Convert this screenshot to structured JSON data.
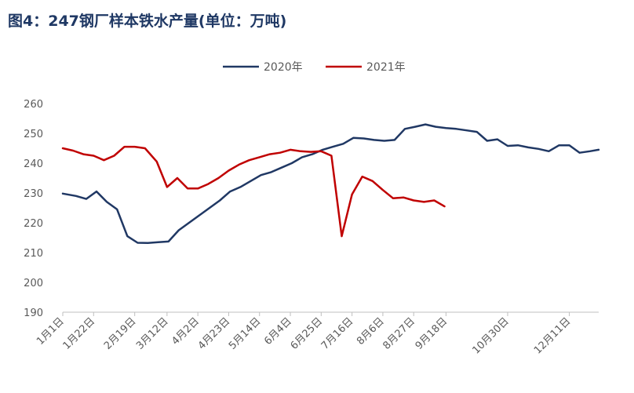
{
  "title": "图4：247钢厂样本铁水产量(单位：万吨)",
  "chart_data": {
    "type": "line",
    "title": "图4：247钢厂样本铁水产量(单位：万吨)",
    "xlabel": "",
    "ylabel": "",
    "ylim": [
      190,
      260
    ],
    "yticks": [
      190,
      200,
      210,
      220,
      230,
      240,
      250,
      260
    ],
    "categories": [
      "1月1日",
      "1月22日",
      "2月19日",
      "3月12日",
      "4月2日",
      "4月23日",
      "5月14日",
      "6月4日",
      "6月25日",
      "7月16日",
      "8月6日",
      "8月27日",
      "9月18日",
      "10月30日",
      "12月11日"
    ],
    "grid": false,
    "legend_position": "top",
    "series": [
      {
        "name": "2020年",
        "color": "#203864",
        "points": [
          [
            "01-01",
            229.8
          ],
          [
            "01-10",
            229
          ],
          [
            "01-17",
            228
          ],
          [
            "01-24",
            230.5
          ],
          [
            "01-31",
            227
          ],
          [
            "02-07",
            224.5
          ],
          [
            "02-14",
            215.5
          ],
          [
            "02-21",
            213.3
          ],
          [
            "02-28",
            213.2
          ],
          [
            "03-06",
            213.5
          ],
          [
            "03-13",
            213.7
          ],
          [
            "03-20",
            217.5
          ],
          [
            "03-27",
            220
          ],
          [
            "04-03",
            222.5
          ],
          [
            "04-10",
            225
          ],
          [
            "04-17",
            227.5
          ],
          [
            "04-24",
            230.5
          ],
          [
            "05-01",
            232
          ],
          [
            "05-08",
            234
          ],
          [
            "05-15",
            236
          ],
          [
            "05-22",
            237
          ],
          [
            "05-29",
            238.5
          ],
          [
            "06-05",
            240
          ],
          [
            "06-12",
            242
          ],
          [
            "06-19",
            243
          ],
          [
            "06-26",
            244.5
          ],
          [
            "07-03",
            245.5
          ],
          [
            "07-10",
            246.5
          ],
          [
            "07-17",
            248.5
          ],
          [
            "07-24",
            248.3
          ],
          [
            "07-31",
            247.8
          ],
          [
            "08-07",
            247.5
          ],
          [
            "08-14",
            247.8
          ],
          [
            "08-21",
            251.5
          ],
          [
            "08-28",
            252.2
          ],
          [
            "09-04",
            253
          ],
          [
            "09-11",
            252.2
          ],
          [
            "09-18",
            251.8
          ],
          [
            "09-25",
            251.5
          ],
          [
            "10-02",
            251
          ],
          [
            "10-09",
            250.5
          ],
          [
            "10-16",
            247.5
          ],
          [
            "10-23",
            248
          ],
          [
            "10-30",
            245.8
          ],
          [
            "11-06",
            246
          ],
          [
            "11-13",
            245.3
          ],
          [
            "11-20",
            244.8
          ],
          [
            "11-27",
            244
          ],
          [
            "12-04",
            246
          ],
          [
            "12-11",
            246
          ],
          [
            "12-18",
            243.5
          ],
          [
            "12-25",
            244
          ],
          [
            "12-31",
            244.5
          ]
        ]
      },
      {
        "name": "2021年",
        "color": "#c00000",
        "points": [
          [
            "01-01",
            245
          ],
          [
            "01-08",
            244.2
          ],
          [
            "01-15",
            243
          ],
          [
            "01-22",
            242.5
          ],
          [
            "01-29",
            241
          ],
          [
            "02-05",
            242.5
          ],
          [
            "02-12",
            245.5
          ],
          [
            "02-19",
            245.5
          ],
          [
            "02-26",
            245
          ],
          [
            "03-05",
            240.5
          ],
          [
            "03-12",
            232
          ],
          [
            "03-19",
            235
          ],
          [
            "03-26",
            231.5
          ],
          [
            "04-02",
            231.5
          ],
          [
            "04-09",
            233
          ],
          [
            "04-16",
            235
          ],
          [
            "04-23",
            237.5
          ],
          [
            "04-30",
            239.5
          ],
          [
            "05-07",
            241
          ],
          [
            "05-14",
            242
          ],
          [
            "05-21",
            243
          ],
          [
            "05-28",
            243.5
          ],
          [
            "06-04",
            244.5
          ],
          [
            "06-11",
            244
          ],
          [
            "06-18",
            243.8
          ],
          [
            "06-25",
            244
          ],
          [
            "07-02",
            242.5
          ],
          [
            "07-09",
            215.5
          ],
          [
            "07-16",
            229.5
          ],
          [
            "07-23",
            235.5
          ],
          [
            "07-30",
            234
          ],
          [
            "08-06",
            231
          ],
          [
            "08-13",
            228.2
          ],
          [
            "08-20",
            228.5
          ],
          [
            "08-27",
            227.5
          ],
          [
            "09-03",
            227
          ],
          [
            "09-10",
            227.5
          ],
          [
            "09-17",
            225.5
          ]
        ]
      }
    ]
  }
}
